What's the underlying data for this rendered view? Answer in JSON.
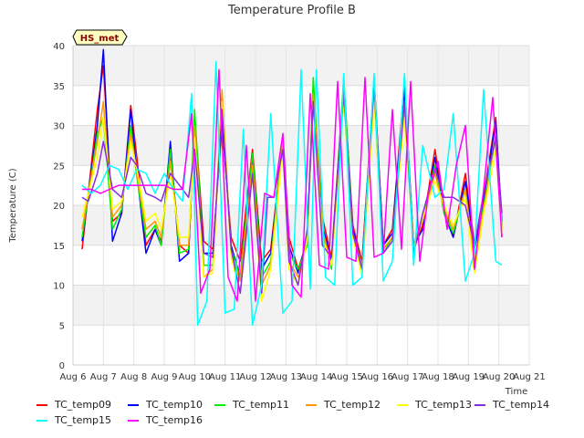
{
  "chart_data": {
    "type": "line",
    "title": "Temperature Profile B",
    "xlabel": "Time",
    "ylabel": "Temperature (C)",
    "xlim": [
      6,
      21
    ],
    "ylim": [
      0,
      40
    ],
    "x_ticks": [
      6,
      7,
      8,
      9,
      10,
      11,
      12,
      13,
      14,
      15,
      16,
      17,
      18,
      19,
      20,
      21
    ],
    "x_tick_labels": [
      "Aug 6",
      "Aug 7",
      "Aug 8",
      "Aug 9",
      "Aug 10",
      "Aug 11",
      "Aug 12",
      "Aug 13",
      "Aug 14",
      "Aug 15",
      "Aug 16",
      "Aug 17",
      "Aug 18",
      "Aug 19",
      "Aug 20",
      "Aug 21"
    ],
    "y_ticks": [
      0,
      5,
      10,
      15,
      20,
      25,
      30,
      35,
      40
    ],
    "y_tick_labels": [
      "0",
      "5",
      "10",
      "15",
      "20",
      "25",
      "30",
      "35",
      "40"
    ],
    "grid": true,
    "background_bands": true,
    "annotation": "HS_met",
    "legend_position": "bottom",
    "series": [
      {
        "name": "TC_temp09",
        "color": "#ff0000",
        "x": [
          6.3,
          6.8,
          7.0,
          7.3,
          7.6,
          7.9,
          8.1,
          8.4,
          8.7,
          8.9,
          9.2,
          9.5,
          9.8,
          10.0,
          10.3,
          10.6,
          10.9,
          11.2,
          11.5,
          11.9,
          12.2,
          12.5,
          12.9,
          13.1,
          13.4,
          13.7,
          13.9,
          14.2,
          14.5,
          14.9,
          15.2,
          15.5,
          15.9,
          16.2,
          16.5,
          16.9,
          17.2,
          17.5,
          17.9,
          18.2,
          18.5,
          18.9,
          19.2,
          19.5,
          19.9,
          20.1
        ],
        "y": [
          14.5,
          32.0,
          37.5,
          18.0,
          19.0,
          32.5,
          26.0,
          15.0,
          17.0,
          15.5,
          26.5,
          15.0,
          14.0,
          31.0,
          15.5,
          14.5,
          30.0,
          16.0,
          13.0,
          27.0,
          13.0,
          14.5,
          28.0,
          16.0,
          12.0,
          15.5,
          35.0,
          18.5,
          13.5,
          35.5,
          17.5,
          13.0,
          36.0,
          15.0,
          17.0,
          35.5,
          14.5,
          17.5,
          27.0,
          19.5,
          16.0,
          24.0,
          15.0,
          21.0,
          31.0,
          16.0
        ]
      },
      {
        "name": "TC_temp10",
        "color": "#0000ff",
        "x": [
          6.3,
          6.8,
          7.0,
          7.3,
          7.6,
          7.9,
          8.1,
          8.4,
          8.7,
          8.9,
          9.2,
          9.5,
          9.8,
          10.0,
          10.3,
          10.6,
          10.9,
          11.2,
          11.5,
          11.9,
          12.2,
          12.5,
          12.9,
          13.1,
          13.4,
          13.7,
          13.9,
          14.2,
          14.5,
          14.9,
          15.2,
          15.5,
          15.9,
          16.2,
          16.5,
          16.9,
          17.2,
          17.5,
          17.9,
          18.2,
          18.5,
          18.9,
          19.2,
          19.5,
          19.9,
          20.1
        ],
        "y": [
          15.5,
          30.0,
          39.5,
          15.5,
          19.0,
          32.0,
          24.0,
          14.0,
          17.0,
          15.0,
          28.0,
          13.0,
          14.0,
          30.0,
          14.0,
          14.0,
          31.0,
          15.0,
          11.0,
          26.0,
          12.0,
          14.0,
          27.5,
          15.0,
          11.5,
          16.0,
          34.0,
          17.5,
          13.0,
          35.0,
          17.0,
          12.5,
          35.5,
          15.0,
          16.5,
          34.5,
          15.0,
          17.0,
          26.0,
          19.0,
          16.0,
          23.0,
          14.5,
          20.5,
          30.5,
          18.0
        ]
      },
      {
        "name": "TC_temp11",
        "color": "#00ee00",
        "x": [
          6.3,
          6.8,
          7.0,
          7.3,
          7.6,
          7.9,
          8.1,
          8.4,
          8.7,
          8.9,
          9.2,
          9.5,
          9.8,
          10.0,
          10.3,
          10.6,
          10.9,
          11.2,
          11.5,
          11.9,
          12.2,
          12.5,
          12.9,
          13.1,
          13.4,
          13.7,
          13.9,
          14.2,
          14.5,
          14.9,
          15.2,
          15.5,
          15.9,
          16.2,
          16.5,
          16.9,
          17.2,
          17.5,
          17.9,
          18.2,
          18.5,
          18.9,
          19.2,
          19.5,
          19.9,
          20.1
        ],
        "y": [
          16.0,
          29.0,
          31.0,
          17.0,
          19.5,
          30.0,
          23.5,
          16.0,
          17.5,
          15.0,
          27.0,
          14.0,
          14.5,
          32.0,
          12.5,
          12.5,
          33.0,
          14.5,
          11.0,
          26.5,
          11.0,
          13.0,
          28.5,
          14.0,
          12.0,
          15.0,
          36.0,
          16.5,
          12.0,
          36.0,
          16.5,
          12.0,
          35.5,
          14.0,
          16.0,
          33.0,
          15.0,
          18.5,
          25.0,
          19.0,
          16.5,
          22.0,
          12.5,
          20.0,
          28.5,
          17.5
        ]
      },
      {
        "name": "TC_temp12",
        "color": "#ff9900",
        "x": [
          6.3,
          6.8,
          7.0,
          7.3,
          7.6,
          7.9,
          8.1,
          8.4,
          8.7,
          8.9,
          9.2,
          9.5,
          9.8,
          10.0,
          10.3,
          10.6,
          10.9,
          11.2,
          11.5,
          11.9,
          12.2,
          12.5,
          12.9,
          13.1,
          13.4,
          13.7,
          13.9,
          14.2,
          14.5,
          14.9,
          15.2,
          15.5,
          15.9,
          16.2,
          16.5,
          16.9,
          17.2,
          17.5,
          17.9,
          18.2,
          18.5,
          18.9,
          19.2,
          19.5,
          19.9,
          20.1
        ],
        "y": [
          17.0,
          28.0,
          33.0,
          18.5,
          20.0,
          29.0,
          24.0,
          17.0,
          18.0,
          16.0,
          25.5,
          15.0,
          15.0,
          30.0,
          11.0,
          12.0,
          34.5,
          14.0,
          10.5,
          25.0,
          10.0,
          12.5,
          28.0,
          13.0,
          11.0,
          15.5,
          34.0,
          17.0,
          12.5,
          34.0,
          16.5,
          12.5,
          34.0,
          14.5,
          16.0,
          32.0,
          15.0,
          18.0,
          24.0,
          19.5,
          17.0,
          22.0,
          13.0,
          19.5,
          29.0,
          17.0
        ]
      },
      {
        "name": "TC_temp13",
        "color": "#ffff00",
        "x": [
          6.3,
          6.8,
          7.0,
          7.3,
          7.6,
          7.9,
          8.1,
          8.4,
          8.7,
          8.9,
          9.2,
          9.5,
          9.8,
          10.0,
          10.3,
          10.6,
          10.9,
          11.2,
          11.5,
          11.9,
          12.2,
          12.5,
          12.9,
          13.1,
          13.4,
          13.7,
          13.9,
          14.2,
          14.5,
          14.9,
          15.2,
          15.5,
          15.9,
          16.2,
          16.5,
          16.9,
          17.2,
          17.5,
          17.9,
          18.2,
          18.5,
          18.9,
          19.2,
          19.5,
          19.9,
          20.1
        ],
        "y": [
          18.5,
          26.0,
          31.0,
          19.5,
          20.5,
          28.0,
          24.5,
          18.0,
          19.0,
          17.0,
          24.0,
          16.0,
          16.0,
          28.5,
          11.0,
          11.5,
          33.0,
          13.5,
          9.0,
          24.0,
          8.0,
          12.0,
          27.0,
          12.0,
          10.0,
          16.0,
          33.0,
          16.0,
          12.5,
          33.0,
          16.0,
          11.0,
          33.0,
          14.0,
          15.5,
          31.0,
          14.5,
          18.5,
          23.0,
          20.0,
          17.5,
          21.0,
          11.5,
          19.0,
          27.0,
          16.5
        ]
      },
      {
        "name": "TC_temp14",
        "color": "#8a2be2",
        "x": [
          6.3,
          6.5,
          6.8,
          7.0,
          7.3,
          7.6,
          7.9,
          8.1,
          8.4,
          8.7,
          8.9,
          9.2,
          9.5,
          9.8,
          10.0,
          10.3,
          10.6,
          10.9,
          11.2,
          11.5,
          11.9,
          12.2,
          12.4,
          12.6,
          12.9,
          13.1,
          13.4,
          13.7,
          13.9,
          14.2,
          14.5,
          14.9,
          15.2,
          15.5,
          15.9,
          16.2,
          16.5,
          16.9,
          17.2,
          17.5,
          17.9,
          18.2,
          18.5,
          18.9,
          19.2,
          19.5,
          19.9,
          20.1
        ],
        "y": [
          21.0,
          20.5,
          24.0,
          28.0,
          22.0,
          21.0,
          26.0,
          25.0,
          21.5,
          21.0,
          20.5,
          24.0,
          22.5,
          21.0,
          27.0,
          14.0,
          13.5,
          32.0,
          14.5,
          9.0,
          24.0,
          9.0,
          21.0,
          21.0,
          27.0,
          13.0,
          10.0,
          17.0,
          33.0,
          15.0,
          13.5,
          34.0,
          16.5,
          12.0,
          35.0,
          14.0,
          15.5,
          33.0,
          14.0,
          19.0,
          24.5,
          21.0,
          21.0,
          20.0,
          15.0,
          21.5,
          28.5,
          19.0
        ]
      },
      {
        "name": "TC_temp15",
        "color": "#00ffff",
        "x": [
          6.3,
          6.6,
          6.9,
          7.2,
          7.5,
          7.8,
          8.1,
          8.4,
          8.7,
          9.0,
          9.3,
          9.6,
          9.9,
          10.1,
          10.4,
          10.7,
          11.0,
          11.3,
          11.6,
          11.9,
          12.2,
          12.5,
          12.9,
          13.2,
          13.5,
          13.8,
          14.0,
          14.3,
          14.6,
          14.9,
          15.2,
          15.5,
          15.9,
          16.2,
          16.5,
          16.9,
          17.2,
          17.5,
          17.9,
          18.2,
          18.5,
          18.9,
          19.2,
          19.5,
          19.9,
          20.1
        ],
        "y": [
          22.5,
          21.5,
          22.5,
          25.0,
          24.5,
          22.0,
          24.5,
          24.0,
          21.5,
          24.0,
          22.0,
          20.5,
          34.0,
          5.0,
          8.0,
          38.0,
          6.5,
          7.0,
          29.5,
          5.0,
          10.0,
          31.5,
          6.5,
          8.0,
          37.0,
          9.5,
          37.0,
          11.0,
          10.0,
          36.5,
          10.0,
          11.0,
          36.5,
          10.5,
          13.0,
          36.5,
          12.5,
          27.5,
          21.0,
          22.0,
          31.5,
          10.5,
          14.0,
          34.5,
          13.0,
          12.5
        ]
      },
      {
        "name": "TC_temp16",
        "color": "#ff00ff",
        "x": [
          6.3,
          6.6,
          6.9,
          7.2,
          7.5,
          7.8,
          8.1,
          8.4,
          8.7,
          9.0,
          9.3,
          9.6,
          9.9,
          10.2,
          10.5,
          10.8,
          11.1,
          11.4,
          11.7,
          12.0,
          12.3,
          12.6,
          12.9,
          13.2,
          13.5,
          13.8,
          14.1,
          14.4,
          14.7,
          15.0,
          15.3,
          15.6,
          15.9,
          16.2,
          16.5,
          16.8,
          17.1,
          17.4,
          17.7,
          18.0,
          18.3,
          18.6,
          18.9,
          19.2,
          19.5,
          19.8,
          20.1
        ],
        "y": [
          22.0,
          22.0,
          21.5,
          22.0,
          22.5,
          22.5,
          22.5,
          22.5,
          22.5,
          22.5,
          22.0,
          22.0,
          31.5,
          9.0,
          12.0,
          37.0,
          11.0,
          8.0,
          27.5,
          8.0,
          21.5,
          21.0,
          29.0,
          10.0,
          8.5,
          34.0,
          12.5,
          12.0,
          35.5,
          13.5,
          13.0,
          36.0,
          13.5,
          14.0,
          32.0,
          14.5,
          35.5,
          13.0,
          22.0,
          25.5,
          17.0,
          25.0,
          30.0,
          12.0,
          22.0,
          33.5,
          16.0
        ]
      }
    ]
  }
}
